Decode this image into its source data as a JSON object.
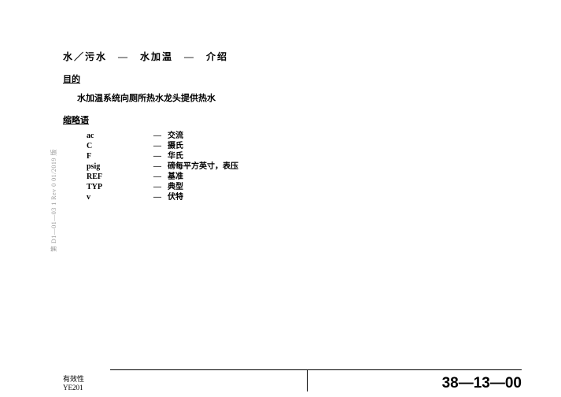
{
  "title": "水／污水　—　水加温　—　介绍",
  "sections": {
    "purpose": {
      "heading": "目的",
      "text": "水加温系统向厕所热水龙头提供热水"
    },
    "abbr": {
      "heading": "缩略语",
      "rows": [
        {
          "key": "ac",
          "dash": "—",
          "val": "交流"
        },
        {
          "key": "C",
          "dash": "—",
          "val": "摄氏"
        },
        {
          "key": "F",
          "dash": "—",
          "val": "华氏"
        },
        {
          "key": "psig",
          "dash": "—",
          "val": "磅每平方英寸，表压"
        },
        {
          "key": "REF",
          "dash": "—",
          "val": "基准"
        },
        {
          "key": "TYP",
          "dash": "—",
          "val": "典型"
        },
        {
          "key": "v",
          "dash": "—",
          "val": "伏特"
        }
      ]
    }
  },
  "sideText": "第  D1—01—03 1 Rev 0  01/2019 版",
  "footer": {
    "validity1": "有效性",
    "validity2": "YE201",
    "code": "38—13—00"
  }
}
